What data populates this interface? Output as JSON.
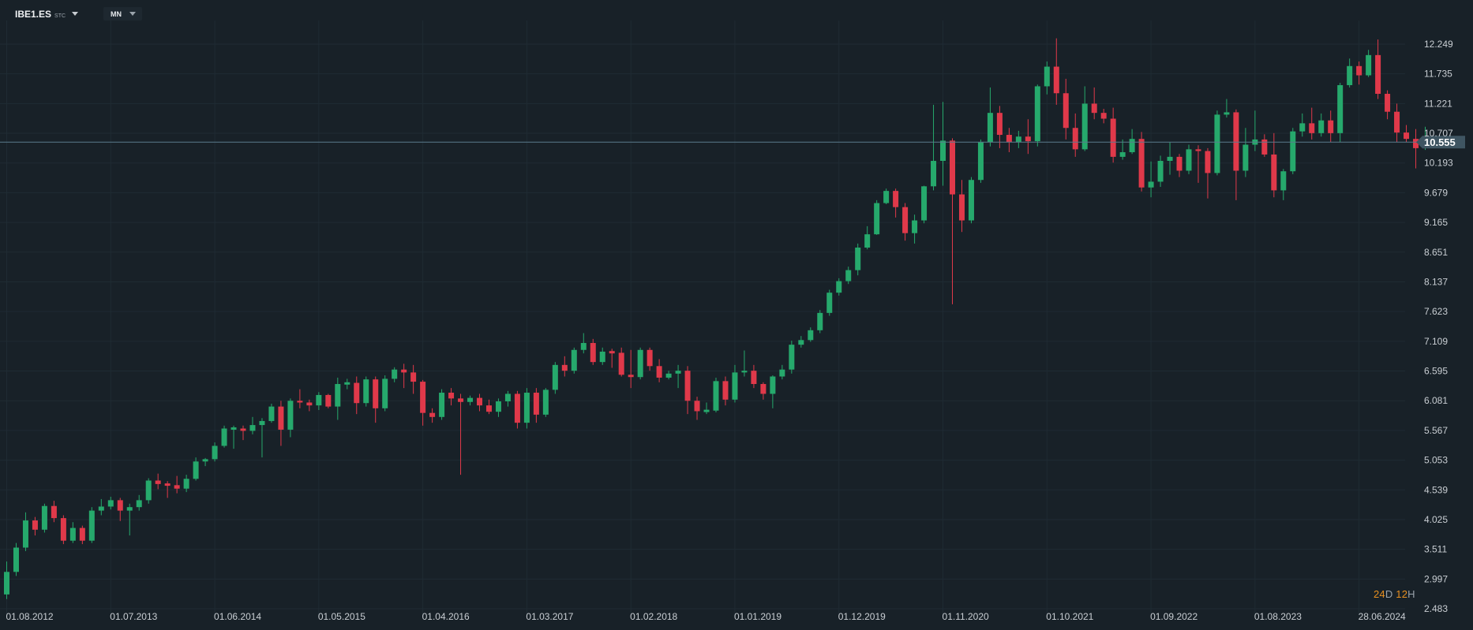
{
  "toolbar": {
    "symbol": "IBE1.ES",
    "symbol_sub": "STC",
    "timeframe": "MN"
  },
  "countdown": {
    "days": "24",
    "days_unit": "D",
    "hours": "12",
    "hours_unit": "H"
  },
  "colors": {
    "up": "#26a96c",
    "down": "#e0394a",
    "background": "#182128",
    "grid": "#1f2b33",
    "price_line": "#5a7a8c",
    "price_tag": "#3f5562"
  },
  "chart_data": {
    "type": "candlestick",
    "title": "",
    "ylim": [
      2.483,
      12.249
    ],
    "x_ticks": [
      "01.08.2012",
      "01.07.2013",
      "01.06.2014",
      "01.05.2015",
      "01.04.2016",
      "01.03.2017",
      "01.02.2018",
      "01.01.2019",
      "01.12.2019",
      "01.11.2020",
      "01.10.2021",
      "01.09.2022",
      "01.08.2023",
      "28.06.2024"
    ],
    "y_ticks": [
      "12.249",
      "11.735",
      "11.221",
      "10.707",
      "10.193",
      "9.679",
      "9.165",
      "8.651",
      "8.137",
      "7.623",
      "7.109",
      "6.595",
      "6.081",
      "5.567",
      "5.053",
      "4.539",
      "4.025",
      "3.511",
      "2.997",
      "2.483"
    ],
    "current_price": "10.555",
    "candles": [
      [
        2.73,
        3.12,
        2.65,
        3.3
      ],
      [
        3.12,
        3.54,
        3.05,
        3.62
      ],
      [
        3.54,
        4.01,
        3.48,
        4.15
      ],
      [
        4.01,
        3.85,
        3.75,
        4.07
      ],
      [
        3.85,
        4.26,
        3.8,
        4.3
      ],
      [
        4.26,
        4.05,
        3.98,
        4.35
      ],
      [
        4.05,
        3.66,
        3.6,
        4.1
      ],
      [
        3.66,
        3.88,
        3.62,
        3.98
      ],
      [
        3.88,
        3.66,
        3.6,
        3.92
      ],
      [
        3.66,
        4.18,
        3.62,
        4.24
      ],
      [
        4.18,
        4.25,
        4.1,
        4.38
      ],
      [
        4.25,
        4.36,
        4.2,
        4.42
      ],
      [
        4.36,
        4.18,
        4.0,
        4.4
      ],
      [
        4.18,
        4.24,
        3.75,
        4.3
      ],
      [
        4.24,
        4.36,
        4.18,
        4.45
      ],
      [
        4.36,
        4.7,
        4.3,
        4.74
      ],
      [
        4.7,
        4.64,
        4.55,
        4.82
      ],
      [
        4.64,
        4.62,
        4.4,
        4.69
      ],
      [
        4.62,
        4.56,
        4.48,
        4.78
      ],
      [
        4.56,
        4.73,
        4.5,
        4.8
      ],
      [
        4.73,
        5.03,
        4.7,
        5.1
      ],
      [
        5.03,
        5.07,
        4.95,
        5.09
      ],
      [
        5.07,
        5.3,
        5.03,
        5.36
      ],
      [
        5.3,
        5.6,
        5.27,
        5.65
      ],
      [
        5.6,
        5.6,
        5.25,
        5.65
      ],
      [
        5.6,
        5.56,
        5.4,
        5.65
      ],
      [
        5.56,
        5.66,
        5.5,
        5.8
      ],
      [
        5.66,
        5.73,
        5.1,
        5.78
      ],
      [
        5.73,
        5.98,
        5.7,
        6.03
      ],
      [
        5.98,
        5.58,
        5.3,
        6.08
      ],
      [
        5.58,
        6.08,
        5.45,
        6.12
      ],
      [
        6.08,
        6.05,
        5.95,
        6.28
      ],
      [
        6.05,
        6.0,
        5.9,
        6.1
      ],
      [
        6.0,
        6.18,
        5.92,
        6.23
      ],
      [
        6.18,
        5.98,
        5.95,
        6.2
      ],
      [
        5.98,
        6.37,
        5.75,
        6.48
      ],
      [
        6.37,
        6.39,
        6.28,
        6.46
      ],
      [
        6.39,
        6.04,
        5.85,
        6.5
      ],
      [
        6.04,
        6.45,
        5.98,
        6.5
      ],
      [
        6.45,
        5.95,
        5.7,
        6.5
      ],
      [
        5.95,
        6.46,
        5.9,
        6.52
      ],
      [
        6.46,
        6.62,
        6.4,
        6.66
      ],
      [
        6.62,
        6.57,
        6.3,
        6.72
      ],
      [
        6.57,
        6.41,
        6.2,
        6.7
      ],
      [
        6.41,
        5.87,
        5.65,
        6.44
      ],
      [
        5.87,
        5.8,
        5.7,
        5.95
      ],
      [
        5.8,
        6.22,
        5.75,
        6.28
      ],
      [
        6.22,
        6.12,
        6.0,
        6.3
      ],
      [
        6.12,
        6.06,
        4.8,
        6.2
      ],
      [
        6.06,
        6.13,
        6.0,
        6.17
      ],
      [
        6.13,
        6.0,
        5.9,
        6.2
      ],
      [
        6.0,
        5.89,
        5.85,
        6.1
      ],
      [
        5.89,
        6.07,
        5.8,
        6.12
      ],
      [
        6.07,
        6.2,
        5.98,
        6.25
      ],
      [
        6.2,
        5.7,
        5.6,
        6.25
      ],
      [
        5.7,
        6.22,
        5.6,
        6.3
      ],
      [
        6.22,
        5.84,
        5.7,
        6.3
      ],
      [
        5.84,
        6.27,
        5.8,
        6.3
      ],
      [
        6.27,
        6.7,
        6.2,
        6.75
      ],
      [
        6.7,
        6.6,
        6.5,
        6.85
      ],
      [
        6.6,
        6.96,
        6.55,
        7.0
      ],
      [
        6.96,
        7.08,
        6.9,
        7.25
      ],
      [
        7.08,
        6.75,
        6.7,
        7.15
      ],
      [
        6.75,
        6.93,
        6.7,
        7.0
      ],
      [
        6.93,
        6.91,
        6.65,
        6.98
      ],
      [
        6.91,
        6.53,
        6.5,
        7.0
      ],
      [
        6.53,
        6.49,
        6.3,
        6.96
      ],
      [
        6.49,
        6.96,
        6.45,
        7.0
      ],
      [
        6.96,
        6.68,
        6.6,
        7.0
      ],
      [
        6.68,
        6.48,
        6.4,
        6.8
      ],
      [
        6.48,
        6.55,
        6.45,
        6.6
      ],
      [
        6.55,
        6.6,
        6.3,
        6.7
      ],
      [
        6.6,
        6.08,
        5.85,
        6.68
      ],
      [
        6.08,
        5.9,
        5.75,
        6.15
      ],
      [
        5.9,
        5.91,
        5.85,
        6.05
      ],
      [
        5.91,
        6.42,
        5.88,
        6.48
      ],
      [
        6.42,
        6.1,
        6.0,
        6.5
      ],
      [
        6.1,
        6.57,
        6.05,
        6.7
      ],
      [
        6.57,
        6.6,
        6.5,
        6.95
      ],
      [
        6.6,
        6.37,
        6.3,
        6.7
      ],
      [
        6.37,
        6.2,
        6.1,
        6.4
      ],
      [
        6.2,
        6.5,
        5.95,
        6.52
      ],
      [
        6.5,
        6.62,
        6.45,
        6.7
      ],
      [
        6.62,
        7.05,
        6.55,
        7.12
      ],
      [
        7.05,
        7.13,
        7.0,
        7.2
      ],
      [
        7.13,
        7.3,
        7.1,
        7.35
      ],
      [
        7.3,
        7.6,
        7.25,
        7.65
      ],
      [
        7.6,
        7.95,
        7.55,
        8.0
      ],
      [
        7.95,
        8.15,
        7.9,
        8.2
      ],
      [
        8.15,
        8.34,
        8.1,
        8.4
      ],
      [
        8.34,
        8.73,
        8.25,
        8.8
      ],
      [
        8.73,
        8.96,
        8.7,
        9.1
      ],
      [
        8.96,
        9.5,
        8.95,
        9.55
      ],
      [
        9.5,
        9.71,
        9.48,
        9.75
      ],
      [
        9.71,
        9.43,
        9.25,
        9.75
      ],
      [
        9.43,
        8.98,
        8.85,
        9.5
      ],
      [
        8.98,
        9.2,
        8.8,
        9.3
      ],
      [
        9.2,
        9.79,
        9.15,
        9.8
      ],
      [
        9.79,
        10.23,
        9.72,
        11.2
      ],
      [
        10.23,
        10.58,
        9.8,
        11.25
      ],
      [
        10.58,
        9.65,
        7.75,
        10.62
      ],
      [
        9.65,
        9.2,
        9.0,
        9.9
      ],
      [
        9.2,
        9.9,
        9.15,
        9.95
      ],
      [
        9.9,
        10.55,
        9.85,
        10.6
      ],
      [
        10.55,
        11.06,
        10.48,
        11.5
      ],
      [
        11.06,
        10.68,
        10.45,
        11.18
      ],
      [
        10.68,
        10.55,
        10.38,
        10.8
      ],
      [
        10.55,
        10.65,
        10.45,
        10.75
      ],
      [
        10.65,
        10.57,
        10.35,
        10.95
      ],
      [
        10.57,
        11.52,
        10.48,
        11.55
      ],
      [
        11.52,
        11.86,
        11.38,
        11.95
      ],
      [
        11.86,
        11.4,
        11.2,
        12.35
      ],
      [
        11.4,
        10.8,
        10.6,
        11.65
      ],
      [
        10.8,
        10.43,
        10.3,
        11.05
      ],
      [
        10.43,
        11.22,
        10.4,
        11.52
      ],
      [
        11.22,
        11.06,
        10.95,
        11.5
      ],
      [
        11.06,
        10.96,
        10.88,
        11.13
      ],
      [
        10.96,
        10.3,
        10.2,
        11.15
      ],
      [
        10.3,
        10.38,
        10.25,
        10.6
      ],
      [
        10.38,
        10.61,
        10.35,
        10.78
      ],
      [
        10.61,
        9.77,
        9.7,
        10.73
      ],
      [
        9.77,
        9.87,
        9.6,
        10.22
      ],
      [
        9.87,
        10.23,
        9.78,
        10.32
      ],
      [
        10.23,
        10.3,
        9.99,
        10.55
      ],
      [
        10.3,
        10.06,
        9.95,
        10.35
      ],
      [
        10.06,
        10.43,
        10.0,
        10.51
      ],
      [
        10.43,
        10.4,
        9.85,
        10.5
      ],
      [
        10.4,
        10.02,
        9.58,
        10.45
      ],
      [
        10.02,
        11.03,
        9.98,
        11.1
      ],
      [
        11.03,
        11.07,
        10.98,
        11.3
      ],
      [
        11.07,
        10.06,
        9.55,
        11.12
      ],
      [
        10.06,
        10.51,
        9.95,
        10.8
      ],
      [
        10.51,
        10.6,
        10.4,
        11.1
      ],
      [
        10.6,
        10.34,
        10.3,
        10.69
      ],
      [
        10.34,
        9.72,
        9.6,
        10.71
      ],
      [
        9.72,
        10.05,
        9.55,
        10.09
      ],
      [
        10.05,
        10.74,
        10.0,
        10.8
      ],
      [
        10.74,
        10.88,
        10.65,
        11.05
      ],
      [
        10.88,
        10.71,
        10.6,
        11.15
      ],
      [
        10.71,
        10.93,
        10.65,
        11.05
      ],
      [
        10.93,
        10.71,
        10.55,
        11.1
      ],
      [
        10.71,
        11.54,
        10.55,
        11.58
      ],
      [
        11.54,
        11.87,
        11.5,
        12.0
      ],
      [
        11.87,
        11.71,
        11.55,
        11.95
      ],
      [
        11.71,
        12.06,
        11.68,
        12.15
      ],
      [
        12.06,
        11.39,
        11.3,
        12.33
      ],
      [
        11.39,
        11.08,
        10.95,
        11.45
      ],
      [
        11.08,
        10.72,
        10.55,
        11.22
      ],
      [
        10.72,
        10.61,
        10.55,
        10.85
      ],
      [
        10.61,
        10.45,
        10.1,
        10.78
      ],
      [
        10.45,
        10.56,
        10.42,
        10.82
      ]
    ]
  }
}
